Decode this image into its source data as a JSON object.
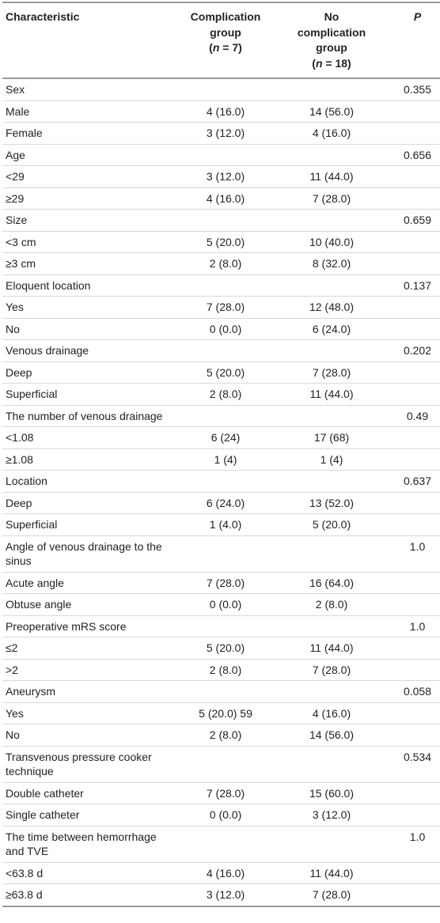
{
  "table": {
    "header": [
      [
        "Characteristic"
      ],
      [
        "Complication group",
        "(",
        "n",
        " = 7)"
      ],
      [
        "No complication group",
        "(",
        "n",
        " = 18)"
      ],
      [
        "P"
      ]
    ],
    "rows": [
      [
        "Sex",
        null,
        null,
        "0.355"
      ],
      [
        "Male",
        "4 (16.0)",
        "14 (56.0)",
        null
      ],
      [
        "Female",
        "3 (12.0)",
        "4 (16.0)",
        null
      ],
      [
        "Age",
        null,
        null,
        "0.656"
      ],
      [
        "<29",
        "3 (12.0)",
        "11 (44.0)",
        null
      ],
      [
        "≥29",
        "4 (16.0)",
        "7 (28.0)",
        null
      ],
      [
        "Size",
        null,
        null,
        "0.659"
      ],
      [
        "<3 cm",
        "5 (20.0)",
        "10 (40.0)",
        null
      ],
      [
        "≥3 cm",
        "2 (8.0)",
        "8 (32.0)",
        null
      ],
      [
        "Eloquent location",
        null,
        null,
        "0.137"
      ],
      [
        "Yes",
        "7 (28.0)",
        "12 (48.0)",
        null
      ],
      [
        "No",
        "0 (0.0)",
        "6 (24.0)",
        null
      ],
      [
        "Venous drainage",
        null,
        null,
        "0.202"
      ],
      [
        "Deep",
        "5 (20.0)",
        "7 (28.0)",
        null
      ],
      [
        "Superficial",
        "2 (8.0)",
        "11 (44.0)",
        null
      ],
      [
        "The number of venous drainage",
        null,
        null,
        "0.49"
      ],
      [
        "<1.08",
        "6 (24)",
        "17 (68)",
        null
      ],
      [
        "≥1.08",
        "1 (4)",
        "1 (4)",
        null
      ],
      [
        "Location",
        null,
        null,
        "0.637"
      ],
      [
        "Deep",
        "6 (24.0)",
        "13 (52.0)",
        null
      ],
      [
        "Superficial",
        "1 (4.0)",
        "5 (20.0)",
        null
      ],
      [
        "Angle of venous drainage to the sinus",
        null,
        null,
        "1.0"
      ],
      [
        "Acute angle",
        "7 (28.0)",
        "16 (64.0)",
        null
      ],
      [
        "Obtuse angle",
        "0 (0.0)",
        "2 (8.0)",
        null
      ],
      [
        "Preoperative mRS score",
        null,
        null,
        "1.0"
      ],
      [
        "≤2",
        "5 (20.0)",
        "11 (44.0)",
        null
      ],
      [
        ">2",
        "2 (8.0)",
        "7 (28.0)",
        null
      ],
      [
        "Aneurysm",
        null,
        null,
        "0.058"
      ],
      [
        "Yes",
        "5 (20.0) 59",
        "4 (16.0)",
        null
      ],
      [
        "No",
        "2 (8.0)",
        "14 (56.0)",
        null
      ],
      [
        "Transvenous pressure cooker technique",
        null,
        null,
        "0.534"
      ],
      [
        "Double catheter",
        "7 (28.0)",
        "15 (60.0)",
        null
      ],
      [
        "Single catheter",
        "0 (0.0)",
        "3 (12.0)",
        null
      ],
      [
        "The time between hemorrhage and TVE",
        null,
        null,
        "1.0"
      ],
      [
        "<63.8 d",
        "4 (16.0)",
        "11 (44.0)",
        null
      ],
      [
        "≥63.8 d",
        "3 (12.0)",
        "7 (28.0)",
        null
      ]
    ]
  }
}
